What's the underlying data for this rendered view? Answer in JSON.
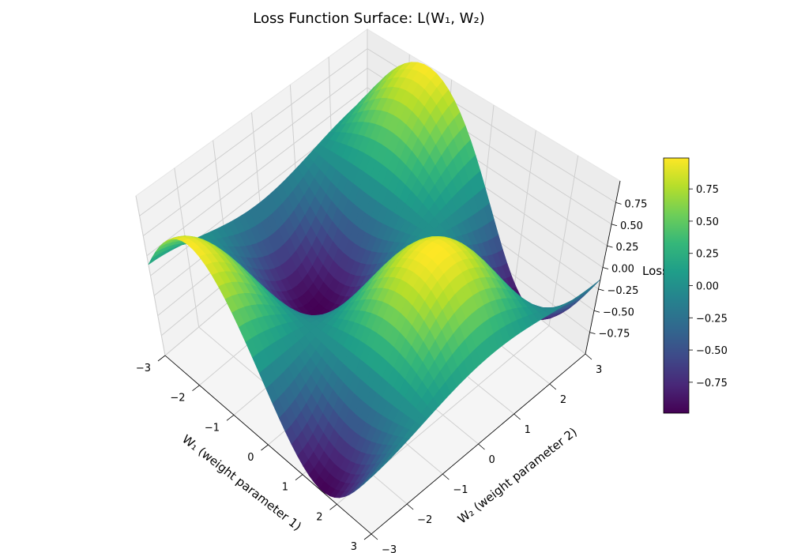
{
  "chart_data": {
    "type": "surface3d",
    "title": "Loss Function Surface: L(W₁, W₂)",
    "xlabel": "W₁ (weight parameter 1)",
    "ylabel": "W₂ (weight parameter 2)",
    "zlabel": "Loss",
    "function": "sin(W₁)·cos(W₂)",
    "xlim": [
      -3,
      3
    ],
    "ylim": [
      -3,
      3
    ],
    "zlim": [
      -1,
      1
    ],
    "x_ticks": [
      "−3",
      "−2",
      "−1",
      "0",
      "1",
      "2",
      "3"
    ],
    "y_ticks": [
      "−3",
      "−2",
      "−1",
      "0",
      "1",
      "2",
      "3"
    ],
    "z_ticks": [
      "−0.75",
      "−0.50",
      "−0.25",
      "0.00",
      "0.25",
      "0.50",
      "0.75"
    ],
    "colormap": "viridis",
    "colorbar": {
      "range": [
        -0.99,
        0.99
      ],
      "ticks": [
        "−0.75",
        "−0.50",
        "−0.25",
        "0.00",
        "0.25",
        "0.50",
        "0.75"
      ]
    },
    "grid": true
  }
}
